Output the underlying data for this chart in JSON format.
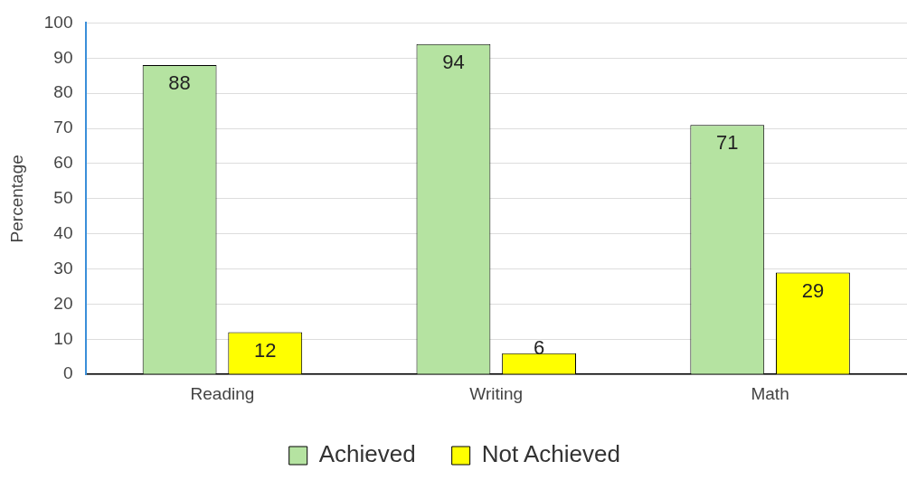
{
  "chart_data": {
    "type": "bar",
    "categories": [
      "Reading",
      "Writing",
      "Math"
    ],
    "ylabel": "Percentage",
    "series": [
      {
        "name": "Achieved",
        "color": "#b5e3a1",
        "values": [
          88,
          94,
          71
        ]
      },
      {
        "name": "Not Achieved",
        "color": "#ffff00",
        "values": [
          12,
          6,
          29
        ]
      }
    ],
    "ylim": [
      0,
      100
    ],
    "yticks": [
      0,
      10,
      20,
      30,
      40,
      50,
      60,
      70,
      80,
      90,
      100
    ],
    "grid": "y",
    "legend": "bottom",
    "data_labels": true
  }
}
